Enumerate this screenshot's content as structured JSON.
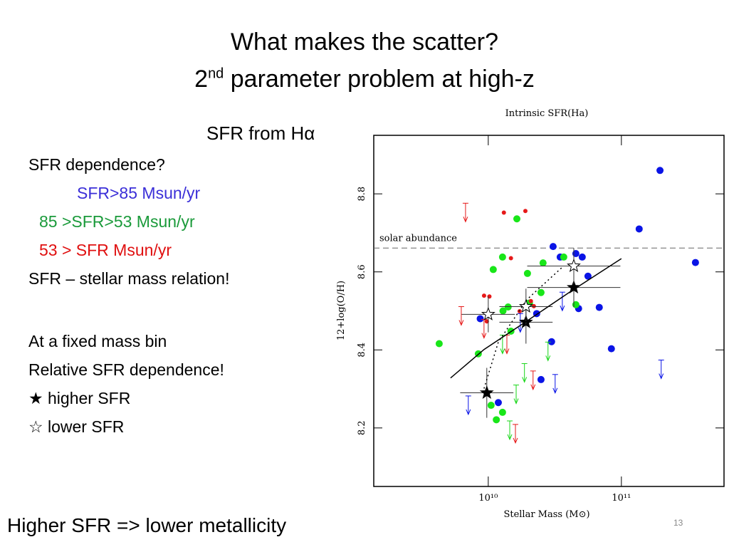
{
  "slide": {
    "title_line1": "What makes the scatter?",
    "title_line2_num": "2",
    "title_line2_sup": "nd",
    "title_line2_rest": " parameter problem at high-z",
    "subtitle": "SFR from Hα",
    "bullets": [
      {
        "text": "SFR  dependence?",
        "color": "#000000"
      },
      {
        "text": "SFR>85 Msun/yr",
        "color": "#3b2fd8"
      },
      {
        "text": "85 >SFR>53 Msun/yr",
        "color": "#1a9a3a"
      },
      {
        "text": "53 > SFR Msun/yr",
        "color": "#e01010"
      },
      {
        "text": "SFR – stellar mass relation!",
        "color": "#000000"
      },
      {
        "text": "At a fixed mass bin",
        "color": "#000000"
      },
      {
        "text": "Relative SFR  dependence!",
        "color": "#000000"
      },
      {
        "text": "★  higher SFR",
        "color": "#000000"
      },
      {
        "text": "☆   lower SFR",
        "color": "#000000"
      }
    ],
    "conclusion": "Higher SFR  =>  lower metallicity",
    "page_number": "13"
  },
  "chart_data": {
    "type": "scatter",
    "title": "Intrinsic SFR(Ha)",
    "x_label": "Stellar Mass (M⊙)",
    "y_label": "12+log(O/H)",
    "xscale": "log",
    "xlim": [
      1380000000.0,
      590000000000.0
    ],
    "ylim": [
      8.05,
      8.95
    ],
    "xticks": [
      {
        "value": 10000000000.0,
        "label": "10¹⁰"
      },
      {
        "value": 100000000000.0,
        "label": "10¹¹"
      }
    ],
    "yticks": [
      8.2,
      8.4,
      8.6,
      8.8
    ],
    "reference_line": {
      "label": "solar abundance",
      "value": 8.661
    },
    "series": [
      {
        "marker": "dot",
        "color": "#0a14e6",
        "x": [
          195000000000.0,
          136000000000.0,
          360000000000.0,
          30700000000.0,
          45500000000.0,
          50800000000.0,
          34700000000.0,
          56100000000.0,
          23100000000.0,
          8700000000.0,
          47700000000.0,
          68200000000.0,
          84100000000.0,
          29900000000.0,
          24900000000.0,
          11900000000.0
        ],
        "values": [
          8.86,
          8.71,
          8.624,
          8.665,
          8.647,
          8.638,
          8.638,
          8.589,
          8.493,
          8.48,
          8.506,
          8.509,
          8.403,
          8.421,
          8.324,
          8.265
        ]
      },
      {
        "marker": "dot",
        "color": "#19e619",
        "x": [
          4280000000.0,
          16400000000.0,
          10900000000.0,
          12800000000.0,
          19700000000.0,
          25800000000.0,
          36900000000.0,
          8420000000.0,
          12900000000.0,
          14100000000.0,
          20400000000.0,
          14800000000.0,
          24900000000.0,
          45500000000.0,
          10500000000.0,
          11500000000.0,
          12800000000.0
        ],
        "values": [
          8.416,
          8.736,
          8.606,
          8.638,
          8.596,
          8.623,
          8.638,
          8.39,
          8.5,
          8.51,
          8.52,
          8.448,
          8.547,
          8.516,
          8.258,
          8.221,
          8.24
        ]
      },
      {
        "marker": "dot-small",
        "color": "#e61919",
        "x": [
          13100000000.0,
          19000000000.0,
          14800000000.0,
          10200000000.0,
          9300000000.0,
          17200000000.0,
          20900000000.0,
          22000000000.0,
          9750000000.0
        ],
        "values": [
          8.752,
          8.756,
          8.635,
          8.537,
          8.539,
          8.499,
          8.525,
          8.512,
          8.473
        ]
      },
      {
        "marker": "arrow",
        "color": "#e61919",
        "x": [
          6750000000.0,
          6270000000.0,
          9290000000.0,
          13800000000.0,
          21700000000.0,
          16000000000.0
        ],
        "values": [
          8.776,
          8.511,
          8.478,
          8.438,
          8.346,
          8.209
        ]
      },
      {
        "marker": "arrow",
        "color": "#19d619",
        "x": [
          12800000000.0,
          18700000000.0,
          16200000000.0,
          14500000000.0,
          28100000000.0
        ],
        "values": [
          8.438,
          8.365,
          8.31,
          8.218,
          8.42
        ]
      },
      {
        "marker": "arrow",
        "color": "#0a14e6",
        "x": [
          199000000000.0,
          31800000000.0,
          7080000000.0,
          17400000000.0,
          36000000000.0
        ],
        "values": [
          8.374,
          8.337,
          8.282,
          8.493,
          8.548
        ]
      },
      {
        "marker": "star-filled",
        "color": "#000000",
        "x": [
          9750000000.0,
          19200000000.0,
          43900000000.0
        ],
        "values": [
          8.29,
          8.471,
          8.56
        ],
        "xerr": [
          0.2,
          0.2,
          0.35
        ],
        "yerr": [
          0.064,
          0.055,
          0.05
        ]
      },
      {
        "marker": "star-open",
        "color": "#000000",
        "x": [
          10000000000.0,
          19200000000.0,
          43900000000.0
        ],
        "values": [
          8.491,
          8.511,
          8.615
        ],
        "xerr": [
          0.2,
          0.2,
          0.35
        ],
        "yerr": [
          0.046,
          0.046,
          0.046
        ]
      },
      {
        "marker": "line-solid",
        "color": "#000000",
        "x": [
          5210000000.0,
          9290000000.0,
          19500000000.0,
          40800000000.0,
          100000000000.0
        ],
        "values": [
          8.328,
          8.401,
          8.474,
          8.548,
          8.634
        ]
      },
      {
        "marker": "line-dotted",
        "color": "#000000",
        "x": [
          9290000000.0,
          11900000000.0,
          19500000000.0,
          36000000000.0
        ],
        "values": [
          8.301,
          8.42,
          8.529,
          8.612
        ]
      }
    ]
  }
}
